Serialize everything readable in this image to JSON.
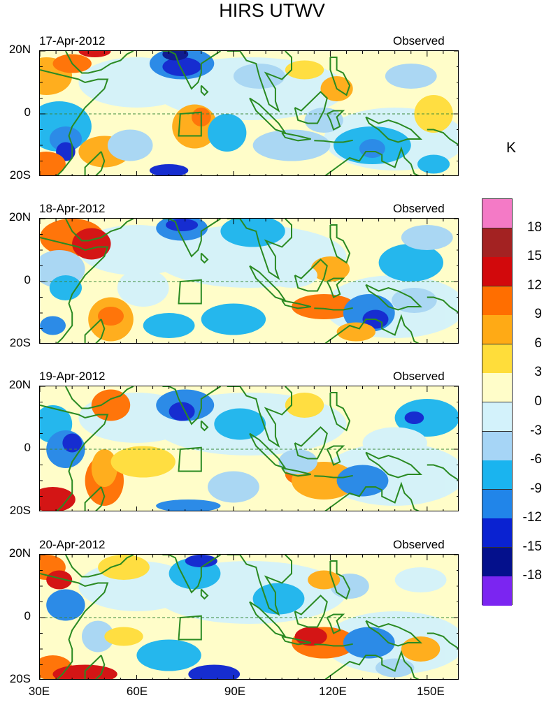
{
  "title": "HIRS UTWV",
  "units_label": "K",
  "status_label": "Observed",
  "lat_labels": [
    "20N",
    "0",
    "20S"
  ],
  "lon_labels": [
    "30E",
    "60E",
    "90E",
    "120E",
    "150E"
  ],
  "panels": [
    {
      "date": "17-Apr-2012"
    },
    {
      "date": "18-Apr-2012"
    },
    {
      "date": "19-Apr-2012"
    },
    {
      "date": "20-Apr-2012"
    }
  ],
  "colorbar": {
    "labels": [
      "18",
      "15",
      "12",
      "9",
      "6",
      "3",
      "0",
      "-3",
      "-6",
      "-9",
      "-12",
      "-15",
      "-18"
    ],
    "colors": [
      "#f47ac6",
      "#a32222",
      "#d2090c",
      "#ff6e00",
      "#ffaa15",
      "#ffdd3a",
      "#fffdc9",
      "#d3f2fb",
      "#a6d5f6",
      "#1ab4ef",
      "#2185e9",
      "#0a22d1",
      "#04108c",
      "#7b25f1"
    ]
  },
  "palette": {
    "coast": "#2a8a22",
    "equator": "#3c8a3c",
    "bg_neutral": "#fdfccc"
  }
}
